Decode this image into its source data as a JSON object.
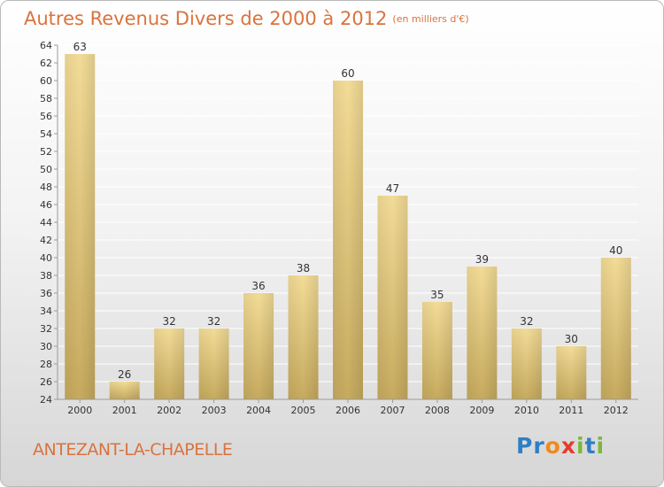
{
  "header": {
    "title": "Autres Revenus Divers de 2000 à 2012",
    "unit_note": "(en milliers d'€)"
  },
  "footer": {
    "place_name": "ANTEZANT-LA-CHAPELLE",
    "logo": {
      "letters": [
        {
          "char": "P",
          "color": "#2e7fc4"
        },
        {
          "char": "r",
          "color": "#2e7fc4"
        },
        {
          "char": "o",
          "color": "#f08a1c"
        },
        {
          "char": "x",
          "color": "#e63b2e"
        },
        {
          "char": "i",
          "color": "#7ab83a"
        },
        {
          "char": "t",
          "color": "#2e7fc4"
        },
        {
          "char": "i",
          "color": "#7ab83a"
        }
      ]
    }
  },
  "colors": {
    "title": "#d9733e",
    "bar_light": "#f3dc97",
    "bar_dark": "#c6aa5e",
    "axis": "#9a9a9a",
    "grid": "#ffffff"
  },
  "chart_data": {
    "type": "bar",
    "title": "Autres Revenus Divers de 2000 à 2012",
    "subtitle": "(en milliers d'€)",
    "xlabel": "",
    "ylabel": "",
    "categories": [
      "2000",
      "2001",
      "2002",
      "2003",
      "2004",
      "2005",
      "2006",
      "2007",
      "2008",
      "2009",
      "2010",
      "2011",
      "2012"
    ],
    "values": [
      63,
      26,
      32,
      32,
      36,
      38,
      60,
      47,
      35,
      39,
      32,
      30,
      40
    ],
    "ylim": [
      24,
      64
    ],
    "yticks": [
      24,
      26,
      28,
      30,
      32,
      34,
      36,
      38,
      40,
      42,
      44,
      46,
      48,
      50,
      52,
      54,
      56,
      58,
      60,
      62,
      64
    ],
    "grid": true,
    "data_labels": true,
    "legend": "none"
  }
}
